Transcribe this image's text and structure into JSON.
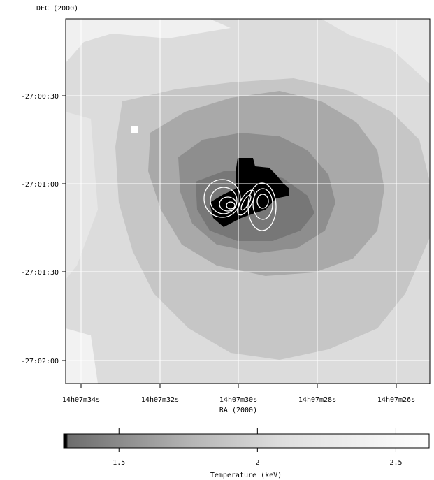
{
  "map": {
    "ylabel": "DEC (2000)",
    "xlabel": "RA (2000)",
    "yticks": [
      "-27:00:30",
      "-27:01:00",
      "-27:01:30",
      "-27:02:00"
    ],
    "xticks": [
      "14h07m34s",
      "14h07m32s",
      "14h07m30s",
      "14h07m28s",
      "14h07m26s"
    ],
    "grid": true,
    "contour_color": "#ffffff"
  },
  "colorbar": {
    "label": "Temperature (keV)",
    "ticks": [
      {
        "label": "1.5",
        "value": 1.5
      },
      {
        "label": "2",
        "value": 2.0
      },
      {
        "label": "2.5",
        "value": 2.5
      }
    ],
    "range": [
      1.3,
      2.62
    ],
    "colors": {
      "low": "#000000",
      "mid": "#7a7a7a",
      "high": "#ffffff"
    }
  }
}
